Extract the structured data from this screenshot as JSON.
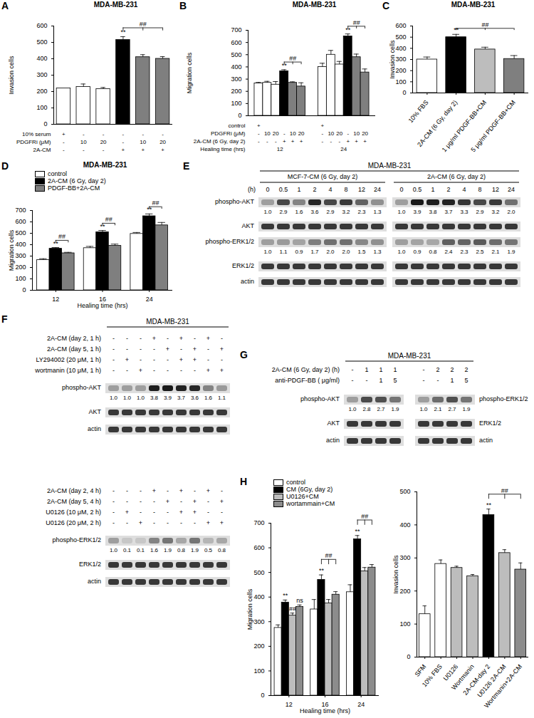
{
  "chart_data": [
    {
      "panel": "A",
      "type": "bar",
      "title": "MDA-MB-231",
      "y_label": "Invasion cells",
      "ylim": [
        0,
        600
      ],
      "yticks": [
        0,
        100,
        200,
        300,
        400,
        500,
        600
      ],
      "tick_labels": "y",
      "categories": [
        null,
        null,
        null,
        null,
        null,
        null
      ],
      "values": [
        220,
        228,
        215,
        515,
        410,
        400
      ],
      "error": [
        0,
        18,
        10,
        20,
        15,
        13
      ],
      "colors": [
        "white",
        "white",
        "white",
        "black",
        "#7f7f7f",
        "#7f7f7f"
      ],
      "table": [
        {
          "label": "10% serum",
          "cells": [
            "+",
            "-",
            "-",
            "-",
            "-",
            "-"
          ]
        },
        {
          "label": "PDGFRi (μM)",
          "cells": [
            "-",
            "10",
            "20",
            "-",
            "10",
            "20"
          ]
        },
        {
          "label": "2A-CM",
          "cells": [
            "-",
            "-",
            "-",
            "+",
            "+",
            "+"
          ]
        }
      ],
      "annotations": [
        {
          "bar": 3,
          "text": "**"
        }
      ],
      "brackets": [
        {
          "from": 3,
          "to": [
            4,
            5
          ],
          "text": "##"
        }
      ]
    },
    {
      "panel": "B",
      "type": "bar",
      "title": "MDA-MB-231",
      "y_label": "Migration cells",
      "x_label": "Healing time (hrs)",
      "ylim": [
        0,
        700
      ],
      "yticks": [
        0,
        100,
        200,
        300,
        400,
        500,
        600,
        700
      ],
      "tick_labels": "y",
      "x": [
        12,
        24
      ],
      "series": [
        {
          "color": "white",
          "values": [
            265,
            400
          ],
          "error": [
            8,
            30
          ]
        },
        {
          "color": "white",
          "values": [
            270,
            500
          ],
          "error": [
            12,
            35
          ]
        },
        {
          "color": "white",
          "values": [
            255,
            420
          ],
          "error": [
            25,
            25
          ]
        },
        {
          "color": "black",
          "values": [
            365,
            650
          ],
          "error": [
            12,
            20
          ]
        },
        {
          "color": "#7f7f7f",
          "values": [
            270,
            480
          ],
          "error": [
            8,
            25
          ]
        },
        {
          "color": "#7f7f7f",
          "values": [
            240,
            355
          ],
          "error": [
            30,
            28
          ]
        }
      ],
      "table": [
        {
          "label": "control",
          "cells": [
            "+",
            null,
            null,
            null,
            null,
            null,
            "+",
            null,
            null,
            null,
            null,
            null
          ]
        },
        {
          "label": "PDGFRi (μM)",
          "cells": [
            "-",
            "10",
            "20",
            "-",
            "10",
            "20",
            "-",
            "10",
            "20",
            "-",
            "10",
            "20"
          ]
        },
        {
          "label": "2A-CM (6 Gy, day 2)",
          "cells": [
            "-",
            "-",
            "-",
            "+",
            "+",
            "+",
            "-",
            "-",
            "-",
            "+",
            "+",
            "+"
          ]
        }
      ],
      "annotations": [
        {
          "bar": 3,
          "text": "**"
        },
        {
          "bar": 9,
          "text": "**"
        }
      ],
      "brackets": [
        {
          "from": 3,
          "to": [
            4,
            5
          ],
          "text": "##"
        },
        {
          "from": 9,
          "to": [
            10,
            11
          ],
          "text": "##"
        }
      ]
    },
    {
      "panel": "C",
      "type": "bar",
      "title": "MDA-MB-231",
      "y_label": "Invasion cells",
      "ylim": [
        0,
        600
      ],
      "yticks": [
        0,
        100,
        200,
        300,
        400,
        500,
        600
      ],
      "categories": [
        "10% FBS",
        "2A-CM (6 Gy, day 2)",
        "1 μg/ml PDGF-BB+CM",
        "5 μg/ml PDGF-BB+CM"
      ],
      "values": [
        300,
        500,
        390,
        305
      ],
      "error": [
        22,
        25,
        20,
        30
      ],
      "colors": [
        "white",
        "black",
        "#bdbdbd",
        "#7f7f7f"
      ],
      "annotations": [
        {
          "bar": 1,
          "text": "**"
        }
      ],
      "brackets": [
        {
          "from": 1,
          "to": [
            2,
            3
          ],
          "text": "##"
        }
      ]
    },
    {
      "panel": "D",
      "type": "bar",
      "title": "MDA-MB-231",
      "y_label": "Migration cells",
      "x_label": "Healing time (hrs)",
      "ylim": [
        0,
        700
      ],
      "yticks": [
        0,
        100,
        200,
        300,
        400,
        500,
        600,
        700
      ],
      "legend": "top-left",
      "x": [
        12,
        16,
        24
      ],
      "series": [
        {
          "name": "control",
          "color": "white",
          "values": [
            265,
            370,
            495
          ],
          "error": [
            12,
            15,
            12
          ]
        },
        {
          "name": "2A-CM (6 Gy, day 2)",
          "color": "black",
          "values": [
            365,
            510,
            650
          ],
          "error": [
            10,
            15,
            20
          ]
        },
        {
          "name": "PDGF-BB+2A-CM",
          "color": "#7f7f7f",
          "values": [
            325,
            390,
            570
          ],
          "error": [
            8,
            15,
            25
          ]
        }
      ],
      "annotations": [
        {
          "bar": 1,
          "text": "**"
        },
        {
          "bar": 4,
          "text": "**"
        },
        {
          "bar": 7,
          "text": "**"
        }
      ],
      "brackets": [
        {
          "from": 1,
          "to": [
            2
          ],
          "text": "##"
        },
        {
          "from": 4,
          "to": [
            5
          ],
          "text": "##"
        },
        {
          "from": 7,
          "to": [
            8
          ],
          "text": "##"
        }
      ]
    },
    {
      "panel": "H",
      "type": "bar",
      "y_label": "Migration cells",
      "x_label": "Healing time (hrs)",
      "ylim": [
        0,
        700
      ],
      "yticks": [
        0,
        100,
        200,
        300,
        400,
        500,
        600,
        700
      ],
      "legend": "top-left",
      "x": [
        12,
        16,
        24
      ],
      "series": [
        {
          "name": "control",
          "color": "white",
          "values": [
            275,
            350,
            420
          ],
          "error": [
            12,
            40,
            30
          ]
        },
        {
          "name": "CM (6Gy, day 2)",
          "color": "black",
          "values": [
            378,
            470,
            635
          ],
          "error": [
            10,
            20,
            15
          ]
        },
        {
          "name": "U0126+CM",
          "color": "#bdbdbd",
          "values": [
            325,
            375,
            505
          ],
          "error": [
            10,
            15,
            15
          ]
        },
        {
          "name": "wortammain+CM",
          "color": "#8c8c8c",
          "values": [
            360,
            410,
            520
          ],
          "error": [
            8,
            12,
            12
          ]
        }
      ],
      "annotations": [
        {
          "bar": 1,
          "text": "**"
        },
        {
          "bar": 2,
          "text": "##"
        },
        {
          "bar": 3,
          "text": "ns"
        },
        {
          "bar": 5,
          "text": "**"
        },
        {
          "bar": 9,
          "text": "**"
        }
      ],
      "brackets": [
        {
          "from": 5,
          "to": [
            6,
            7
          ],
          "text": "##"
        },
        {
          "from": 9,
          "to": [
            10,
            11
          ],
          "text": "##"
        }
      ]
    },
    {
      "type": "bar",
      "y_label": "Invasion cells",
      "ylim": [
        0,
        500
      ],
      "yticks": [
        0,
        100,
        200,
        300,
        400,
        500
      ],
      "categories": [
        "SFM",
        "10% FBS",
        "U0126",
        "Wortmanin",
        "2A-CM-day 2",
        "U0126 2A-CM",
        "Wortmanin+2A-CM"
      ],
      "values": [
        130,
        282,
        270,
        245,
        430,
        315,
        265
      ],
      "error": [
        25,
        12,
        5,
        5,
        18,
        10,
        20
      ],
      "colors": [
        "white",
        "white",
        "#bdbdbd",
        "#bdbdbd",
        "black",
        "#bdbdbd",
        "#8c8c8c"
      ],
      "annotations": [
        {
          "bar": 4,
          "text": "**"
        }
      ],
      "brackets": [
        {
          "from": 4,
          "to": [
            5,
            6
          ],
          "text": "##"
        }
      ]
    }
  ],
  "blots": [
    {
      "panel": "E",
      "title": "MDA-MB-231",
      "lane_label": "(h)",
      "groups": [
        {
          "header": "MCF-7-CM (6 Gy, day 2)",
          "lanes": [
            "0",
            "0.5",
            "1",
            "2",
            "4",
            "8",
            "12",
            "24"
          ]
        },
        {
          "header": "2A-CM (6 Gy, day 2)",
          "lanes": [
            "0",
            "0.5",
            "1",
            "2",
            "4",
            "8",
            "12",
            "24"
          ]
        }
      ],
      "rows": [
        {
          "label": "phospho-AKT",
          "quant": [
            [
              "1.0",
              "2.9",
              "1.6",
              "3.6",
              "2.9",
              "3.2",
              "2.3",
              "1.3"
            ],
            [
              "1.0",
              "3.9",
              "3.8",
              "3.7",
              "3.3",
              "2.9",
              "3.2",
              "2.0"
            ]
          ]
        },
        {
          "label": "AKT"
        },
        {
          "label": "phospho-ERK1/2",
          "quant": [
            [
              "1.0",
              "1.1",
              "0.9",
              "1.7",
              "2.0",
              "2.0",
              "1.5",
              "1.3"
            ],
            [
              "1.0",
              "0.9",
              "0.8",
              "2.4",
              "2.3",
              "2.5",
              "2.1",
              "1.9"
            ]
          ]
        },
        {
          "label": "ERK1/2"
        },
        {
          "label": "actin"
        }
      ]
    },
    {
      "panel": "F",
      "title": "MDA-MB-231",
      "blocks": [
        {
          "conditions": [
            {
              "label": "2A-CM (day 2, 1 h)",
              "cells": [
                "-",
                "-",
                "-",
                "+",
                "-",
                "+",
                "-",
                "+",
                "-"
              ]
            },
            {
              "label": "2A-CM (day 5, 1 h)",
              "cells": [
                "-",
                "-",
                "-",
                "-",
                "+",
                "-",
                "+",
                "-",
                "+"
              ]
            },
            {
              "label": "LY294002 (20 μM, 1 h)",
              "cells": [
                "-",
                "+",
                "-",
                "-",
                "-",
                "+",
                "+",
                "-",
                "-"
              ]
            },
            {
              "label": "wortmanin (10 μM, 1 h)",
              "cells": [
                "-",
                "-",
                "+",
                "-",
                "-",
                "-",
                "-",
                "+",
                "+"
              ]
            }
          ],
          "rows": [
            {
              "label": "phospho-AKT",
              "quant": [
                "1.0",
                "1.0",
                "1.0",
                "3.8",
                "3.9",
                "3.7",
                "3.6",
                "1.6",
                "1.1"
              ]
            },
            {
              "label": "AKT"
            },
            {
              "label": "actin"
            }
          ]
        },
        {
          "conditions": [
            {
              "label": "2A-CM (day 2, 4 h)",
              "cells": [
                "-",
                "-",
                "-",
                "+",
                "-",
                "+",
                "-",
                "+",
                "-"
              ]
            },
            {
              "label": "2A-CM (day 5, 4 h)",
              "cells": [
                "-",
                "-",
                "-",
                "-",
                "+",
                "-",
                "+",
                "-",
                "+"
              ]
            },
            {
              "label": "U0126 (10 μM, 2 h)",
              "cells": [
                "-",
                "+",
                "-",
                "-",
                "-",
                "+",
                "+",
                "-",
                "-"
              ]
            },
            {
              "label": "U0126 (20 μM, 2 h)",
              "cells": [
                "-",
                "-",
                "+",
                "-",
                "-",
                "-",
                "-",
                "+",
                "+"
              ]
            }
          ],
          "rows": [
            {
              "label": "phospho-ERK1/2",
              "quant": [
                "1.0",
                "0.1",
                "0.1",
                "1.6",
                "1.9",
                "0.8",
                "1.9",
                "0.5",
                "0.8"
              ]
            },
            {
              "label": "ERK1/2"
            },
            {
              "label": "actin"
            }
          ]
        }
      ]
    },
    {
      "panel": "G",
      "title": "MDA-MB-231",
      "conditions": [
        {
          "label": "2A-CM (6 Gy, day 2) (h)",
          "cells": [
            [
              "-",
              "1",
              "1",
              "1"
            ],
            [
              "-",
              "2",
              "2",
              "2"
            ]
          ]
        },
        {
          "label": "anti-PDGF-BB ( μg/ml)",
          "cells": [
            [
              "-",
              "-",
              "1",
              "5"
            ],
            [
              "-",
              "-",
              "1",
              "5"
            ]
          ]
        }
      ],
      "blocks": [
        {
          "rows": [
            {
              "label": "phospho-AKT",
              "quant": [
                "1.0",
                "2.8",
                "2.7",
                "1.9"
              ]
            },
            {
              "label": "AKT"
            },
            {
              "label": "actin"
            }
          ]
        },
        {
          "rows": [
            {
              "label": "phospho-ERK1/2",
              "quant": [
                "1.0",
                "2.1",
                "2.7",
                "1.9"
              ]
            },
            {
              "label": "ERK1/2"
            },
            {
              "label": "actin"
            }
          ]
        }
      ]
    }
  ]
}
